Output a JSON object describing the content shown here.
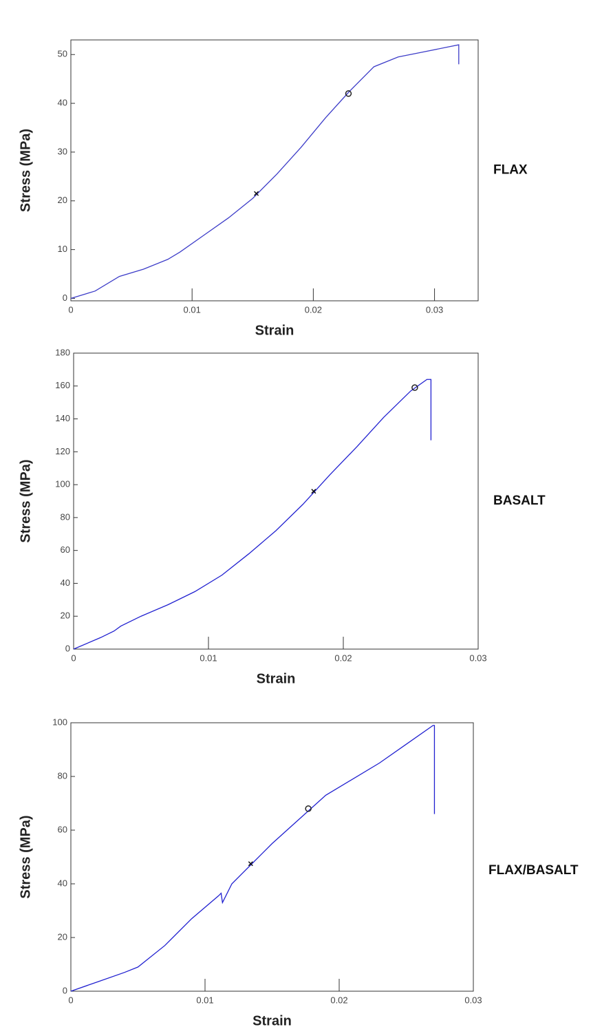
{
  "chart_data": [
    {
      "type": "line",
      "xlabel": "Strain",
      "ylabel": "Stress (MPa)",
      "annotation": "FLAX",
      "color": "#3c3cc8",
      "x": [
        0,
        0.002,
        0.004,
        0.006,
        0.008,
        0.009,
        0.011,
        0.013,
        0.015,
        0.017,
        0.019,
        0.021,
        0.023,
        0.025,
        0.027,
        0.029,
        0.031,
        0.032,
        0.032
      ],
      "values": [
        0,
        1.5,
        4.5,
        6,
        8,
        9.5,
        13,
        16.5,
        20.5,
        25.5,
        31,
        37,
        42.5,
        47.5,
        49.5,
        50.5,
        51.5,
        52,
        48
      ],
      "markers": [
        {
          "x": 0.0229,
          "y": 42,
          "shape": "circle"
        },
        {
          "x": 0.0153,
          "y": 21.5,
          "shape": "cross"
        }
      ],
      "xlim": [
        0,
        0.0336
      ],
      "xticks": [
        0,
        0.01,
        0.02,
        0.03
      ],
      "ylim": [
        -0.5,
        53
      ],
      "yticks": [
        0,
        10,
        20,
        30,
        40,
        50
      ]
    },
    {
      "type": "line",
      "xlabel": "Strain",
      "ylabel": "Stress (MPa)",
      "annotation": "BASALT",
      "color": "#2020d0",
      "x": [
        0,
        0.002,
        0.003,
        0.0035,
        0.005,
        0.007,
        0.009,
        0.011,
        0.013,
        0.015,
        0.017,
        0.019,
        0.021,
        0.023,
        0.025,
        0.0262,
        0.0265,
        0.0265
      ],
      "values": [
        0,
        7,
        11,
        14,
        20,
        27,
        35,
        45,
        58,
        72,
        88,
        106,
        123,
        141,
        157,
        164,
        164,
        127
      ],
      "markers": [
        {
          "x": 0.0253,
          "y": 159,
          "shape": "circle"
        },
        {
          "x": 0.0178,
          "y": 96,
          "shape": "cross"
        }
      ],
      "xlim": [
        0,
        0.03
      ],
      "xticks": [
        0,
        0.01,
        0.02,
        0.03
      ],
      "ylim": [
        0,
        180
      ],
      "yticks": [
        0,
        20,
        40,
        60,
        80,
        100,
        120,
        140,
        160,
        180
      ]
    },
    {
      "type": "line",
      "xlabel": "Strain",
      "ylabel": "Stress (MPa)",
      "annotation": "FLAX/BASALT",
      "color": "#2020d0",
      "x": [
        0,
        0.002,
        0.004,
        0.005,
        0.007,
        0.009,
        0.011,
        0.0112,
        0.0113,
        0.012,
        0.0135,
        0.015,
        0.017,
        0.019,
        0.021,
        0.023,
        0.025,
        0.027,
        0.0271,
        0.0271
      ],
      "values": [
        0,
        3.5,
        7,
        9,
        17,
        27,
        35.5,
        36.5,
        33,
        40,
        47.5,
        55,
        64,
        73,
        79,
        85,
        92,
        99,
        99,
        66
      ],
      "markers": [
        {
          "x": 0.0177,
          "y": 68,
          "shape": "circle"
        },
        {
          "x": 0.0134,
          "y": 47.5,
          "shape": "cross"
        }
      ],
      "xlim": [
        0,
        0.03
      ],
      "xticks": [
        0,
        0.01,
        0.02,
        0.03
      ],
      "ylim": [
        0,
        100
      ],
      "yticks": [
        0,
        20,
        40,
        60,
        80,
        100
      ]
    }
  ]
}
